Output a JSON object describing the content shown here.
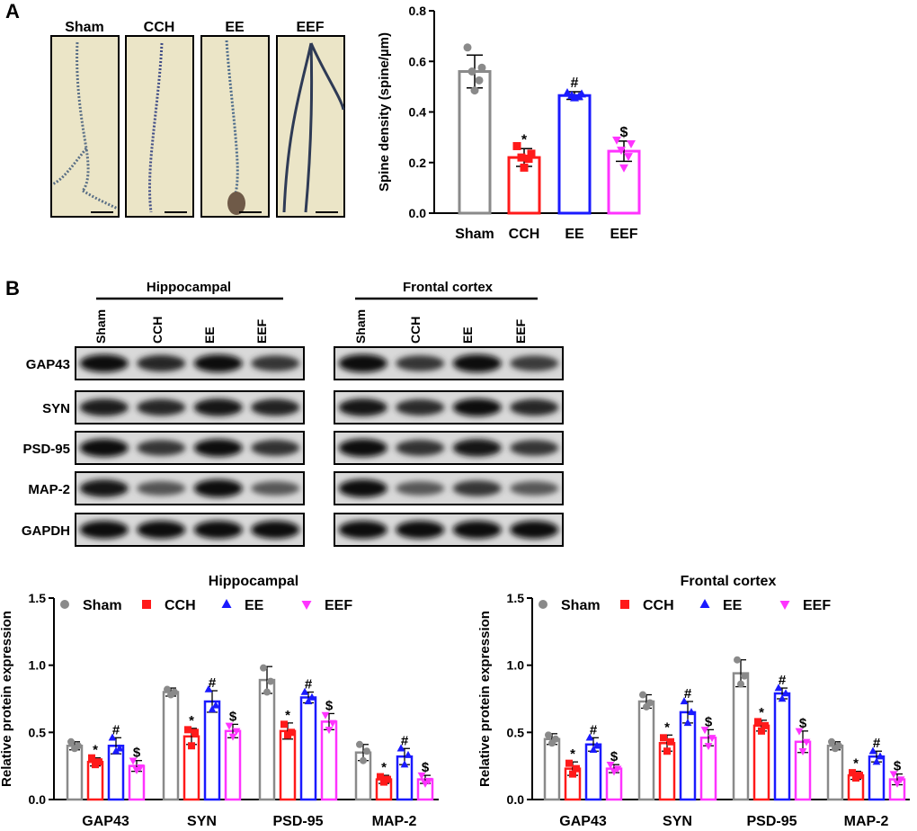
{
  "panel_a": {
    "label": "A",
    "micrograph_titles": [
      "Sham",
      "CCH",
      "EE",
      "EEF"
    ],
    "chart": {
      "type": "bar",
      "categories": [
        "Sham",
        "CCH",
        "EE",
        "EEF"
      ],
      "values": [
        0.56,
        0.22,
        0.465,
        0.245
      ],
      "errors": [
        0.065,
        0.035,
        0.015,
        0.04
      ],
      "points": [
        [
          0.655,
          0.575,
          0.56,
          0.525,
          0.485
        ],
        [
          0.265,
          0.235,
          0.22,
          0.215,
          0.18
        ],
        [
          0.475,
          0.47,
          0.465,
          0.46,
          0.455
        ],
        [
          0.29,
          0.275,
          0.25,
          0.225,
          0.18
        ]
      ],
      "markers": [
        "circle",
        "square",
        "triangle-up",
        "triangle-down"
      ],
      "colors": [
        "#8a8a8a",
        "#ff1a1a",
        "#1a1aff",
        "#ff33ff"
      ],
      "sig": [
        "",
        "*",
        "#",
        "$"
      ],
      "ylabel": "Spine density (spine/µm)",
      "ylim": [
        0,
        0.8
      ],
      "yticks": [
        "0.0",
        "0.2",
        "0.4",
        "0.6",
        "0.8"
      ]
    }
  },
  "panel_b": {
    "label": "B",
    "blots": [
      {
        "group": "Hippocampal",
        "lanes": [
          "Sham",
          "CCH",
          "EE",
          "EEF"
        ],
        "intensity": {
          "GAP43": [
            0.95,
            0.75,
            0.95,
            0.6
          ],
          "SYN": [
            0.85,
            0.75,
            0.9,
            0.8
          ],
          "PSD-95": [
            1.0,
            0.6,
            0.95,
            0.65
          ],
          "MAP-2": [
            0.9,
            0.35,
            1.0,
            0.3
          ],
          "GAPDH": [
            1.0,
            1.0,
            1.0,
            1.0
          ]
        }
      },
      {
        "group": "Frontal cortex",
        "lanes": [
          "Sham",
          "CCH",
          "EE",
          "EEF"
        ],
        "intensity": {
          "GAP43": [
            1.0,
            0.6,
            1.0,
            0.55
          ],
          "SYN": [
            0.9,
            0.7,
            0.95,
            0.75
          ],
          "PSD-95": [
            1.0,
            0.65,
            0.9,
            0.6
          ],
          "MAP-2": [
            1.0,
            0.3,
            0.6,
            0.3
          ],
          "GAPDH": [
            1.0,
            1.0,
            1.0,
            1.0
          ]
        }
      }
    ],
    "row_labels": [
      "GAP43",
      "SYN",
      "PSD-95",
      "MAP-2",
      "GAPDH"
    ]
  },
  "chart_data": [
    {
      "type": "bar",
      "title": "Hippocampal",
      "categories": [
        "GAP43",
        "SYN",
        "PSD-95",
        "MAP-2"
      ],
      "legend": [
        "Sham",
        "CCH",
        "EE",
        "EEF"
      ],
      "ylabel": "Relative protein expression",
      "ylim": [
        0,
        1.5
      ],
      "yticks": [
        "0.0",
        "0.5",
        "1.0",
        "1.5"
      ],
      "series": [
        {
          "name": "Sham",
          "values": [
            0.4,
            0.8,
            0.89,
            0.35
          ],
          "errors": [
            0.03,
            0.03,
            0.1,
            0.06
          ],
          "points": [
            [
              0.43,
              0.4,
              0.38
            ],
            [
              0.82,
              0.8,
              0.78
            ],
            [
              0.98,
              0.88,
              0.8
            ],
            [
              0.41,
              0.36,
              0.29
            ]
          ]
        },
        {
          "name": "CCH",
          "values": [
            0.28,
            0.47,
            0.51,
            0.15
          ],
          "errors": [
            0.03,
            0.06,
            0.06,
            0.03
          ],
          "points": [
            [
              0.31,
              0.28,
              0.26
            ],
            [
              0.52,
              0.5,
              0.4
            ],
            [
              0.56,
              0.5,
              0.48
            ],
            [
              0.17,
              0.15,
              0.13
            ]
          ]
        },
        {
          "name": "EE",
          "values": [
            0.4,
            0.73,
            0.76,
            0.32
          ],
          "errors": [
            0.06,
            0.08,
            0.04,
            0.06
          ],
          "points": [
            [
              0.46,
              0.38,
              0.36
            ],
            [
              0.82,
              0.7,
              0.67
            ],
            [
              0.8,
              0.76,
              0.73
            ],
            [
              0.38,
              0.33,
              0.26
            ]
          ]
        },
        {
          "name": "EEF",
          "values": [
            0.25,
            0.51,
            0.58,
            0.15
          ],
          "errors": [
            0.04,
            0.05,
            0.06,
            0.03
          ],
          "points": [
            [
              0.29,
              0.24,
              0.22
            ],
            [
              0.55,
              0.51,
              0.47
            ],
            [
              0.63,
              0.57,
              0.52
            ],
            [
              0.18,
              0.14,
              0.12
            ]
          ]
        }
      ],
      "sig": [
        "",
        "*",
        "#",
        "$"
      ]
    },
    {
      "type": "bar",
      "title": "Frontal cortex",
      "categories": [
        "GAP43",
        "SYN",
        "PSD-95",
        "MAP-2"
      ],
      "legend": [
        "Sham",
        "CCH",
        "EE",
        "EEF"
      ],
      "ylabel": "Relative protein expression",
      "ylim": [
        0,
        1.5
      ],
      "yticks": [
        "0.0",
        "0.5",
        "1.0",
        "1.5"
      ],
      "series": [
        {
          "name": "Sham",
          "values": [
            0.45,
            0.73,
            0.94,
            0.4
          ],
          "errors": [
            0.04,
            0.05,
            0.1,
            0.03
          ],
          "points": [
            [
              0.48,
              0.45,
              0.42
            ],
            [
              0.78,
              0.72,
              0.69
            ],
            [
              1.04,
              0.92,
              0.86
            ],
            [
              0.43,
              0.4,
              0.38
            ]
          ]
        },
        {
          "name": "CCH",
          "values": [
            0.23,
            0.42,
            0.55,
            0.18
          ],
          "errors": [
            0.05,
            0.06,
            0.04,
            0.03
          ],
          "points": [
            [
              0.27,
              0.23,
              0.19
            ],
            [
              0.46,
              0.43,
              0.36
            ],
            [
              0.58,
              0.55,
              0.51
            ],
            [
              0.2,
              0.18,
              0.16
            ]
          ]
        },
        {
          "name": "EE",
          "values": [
            0.41,
            0.65,
            0.79,
            0.32
          ],
          "errors": [
            0.05,
            0.08,
            0.04,
            0.04
          ],
          "points": [
            [
              0.46,
              0.4,
              0.37
            ],
            [
              0.73,
              0.65,
              0.57
            ],
            [
              0.83,
              0.79,
              0.75
            ],
            [
              0.36,
              0.32,
              0.28
            ]
          ]
        },
        {
          "name": "EEF",
          "values": [
            0.23,
            0.46,
            0.43,
            0.15
          ],
          "errors": [
            0.03,
            0.06,
            0.08,
            0.04
          ],
          "points": [
            [
              0.26,
              0.23,
              0.21
            ],
            [
              0.52,
              0.46,
              0.4
            ],
            [
              0.51,
              0.43,
              0.36
            ],
            [
              0.19,
              0.15,
              0.12
            ]
          ]
        }
      ],
      "sig": [
        "",
        "*",
        "#",
        "$"
      ]
    }
  ],
  "colors": {
    "sham": "#8a8a8a",
    "cch": "#ff1a1a",
    "ee": "#1a1aff",
    "eef": "#ff33ff"
  }
}
